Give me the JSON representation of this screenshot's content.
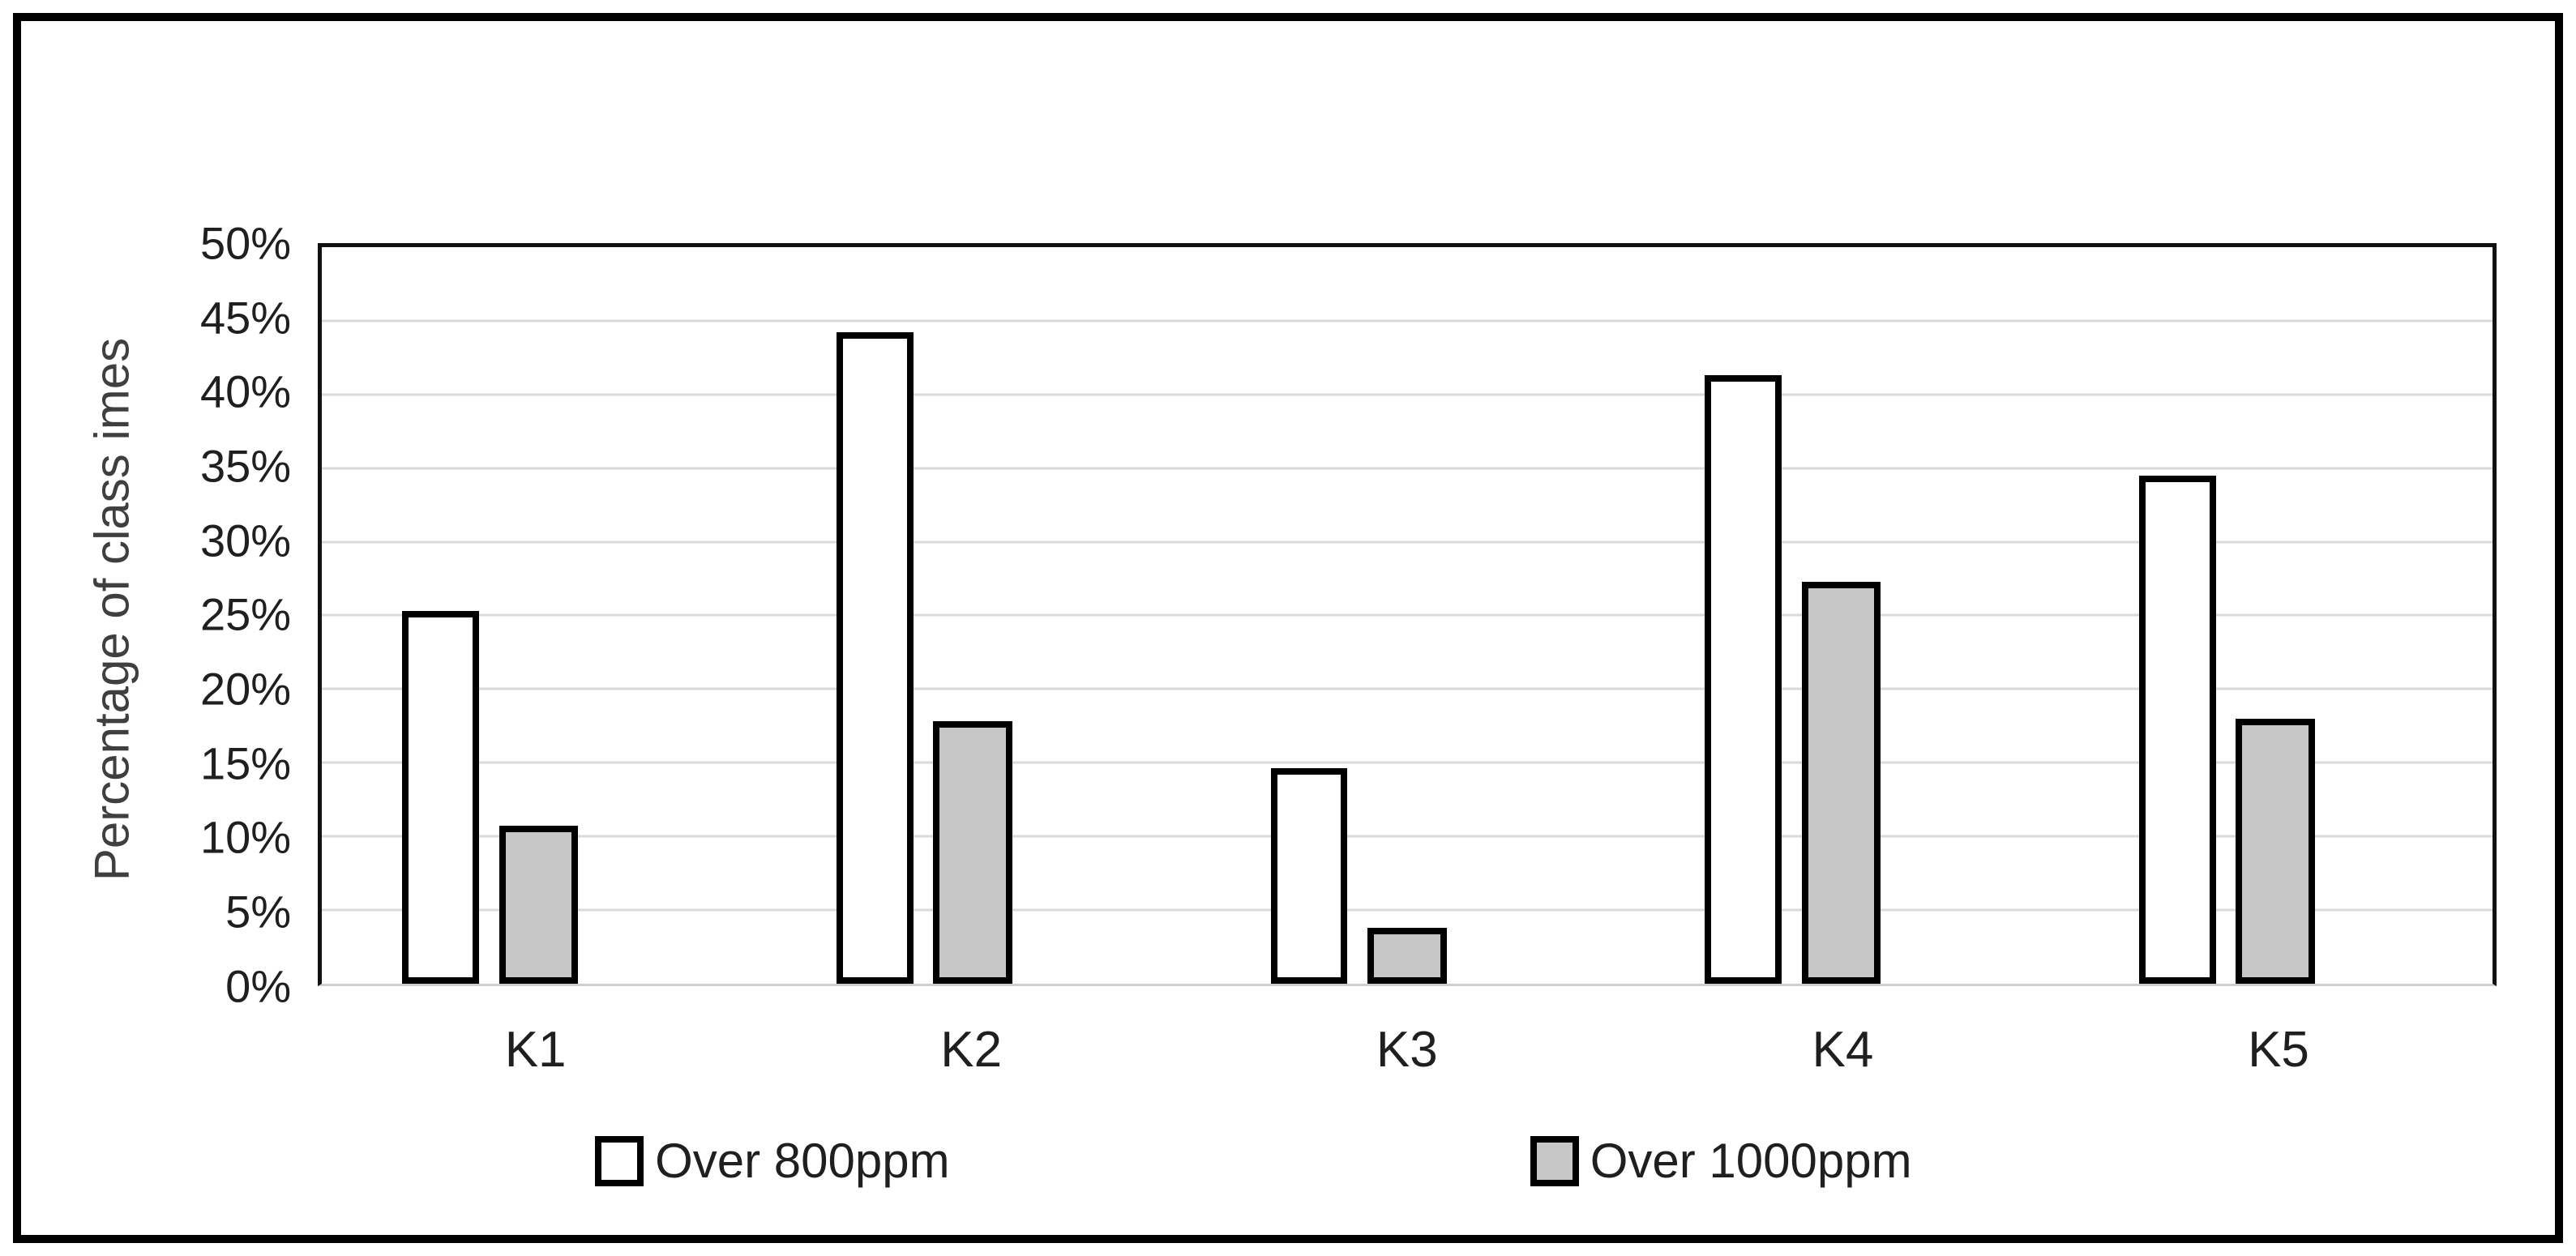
{
  "figure": {
    "background": "#ffffff",
    "border_color": "#000000"
  },
  "chart_data": {
    "type": "bar",
    "title": "",
    "ylabel": "Percentage of class imes",
    "xlabel": "",
    "categories": [
      "K1",
      "K2",
      "K3",
      "K4",
      "K5"
    ],
    "series": [
      {
        "name": "Over 800ppm",
        "fill": "#ffffff",
        "outline": "#000000",
        "values": [
          25.3,
          44.2,
          14.6,
          41.3,
          34.5
        ]
      },
      {
        "name": "Over 1000ppm",
        "fill": "#c6c6c6",
        "outline": "#000000",
        "values": [
          10.7,
          17.8,
          3.8,
          27.3,
          18.0
        ]
      }
    ],
    "ylim": [
      0,
      50
    ],
    "ytick_step": 5,
    "ytick_suffix": "%",
    "grid": true,
    "gridline_color": "#d9d9d9",
    "legend_position": "bottom"
  }
}
